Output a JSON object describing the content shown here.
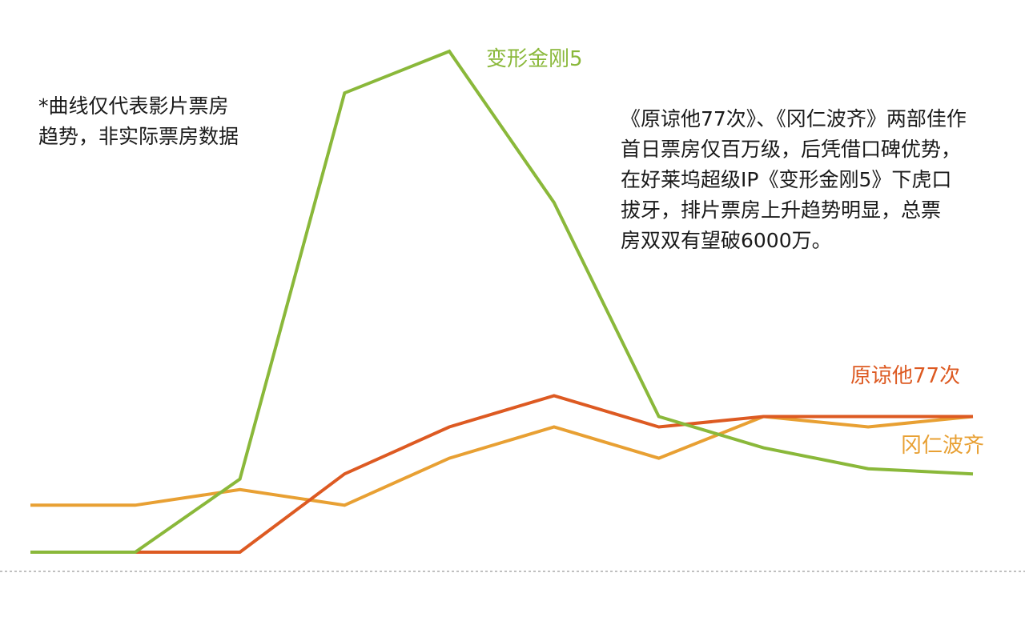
{
  "chart_data": {
    "type": "line",
    "x": [
      1,
      2,
      3,
      4,
      5,
      6,
      7,
      8,
      9,
      10
    ],
    "ylim": [
      0,
      100
    ],
    "grid": false,
    "series": [
      {
        "name": "变形金刚5",
        "color": "#8ab83a",
        "values": [
          0,
          0,
          14,
          88,
          96,
          67,
          26,
          20,
          16,
          15
        ]
      },
      {
        "name": "原谅他77次",
        "color": "#dd5a22",
        "values": [
          0,
          0,
          0,
          15,
          24,
          30,
          24,
          26,
          26,
          26
        ]
      },
      {
        "name": "冈仁波齐",
        "color": "#e8a033",
        "values": [
          9,
          9,
          12,
          9,
          18,
          24,
          18,
          26,
          24,
          26
        ]
      }
    ],
    "annotations": {
      "left": [
        "*曲线仅代表影片票房",
        "趋势，非实际票房数据"
      ],
      "right": [
        "《原谅他77次》、《冈仁波齐》两部佳作",
        "首日票房仅百万级，后凭借口碑优势，",
        "在好莱坞超级IP《变形金刚5》下虎口",
        "拔牙，排片票房上升趋势明显，总票",
        "房双双有望破6000万。"
      ]
    }
  }
}
